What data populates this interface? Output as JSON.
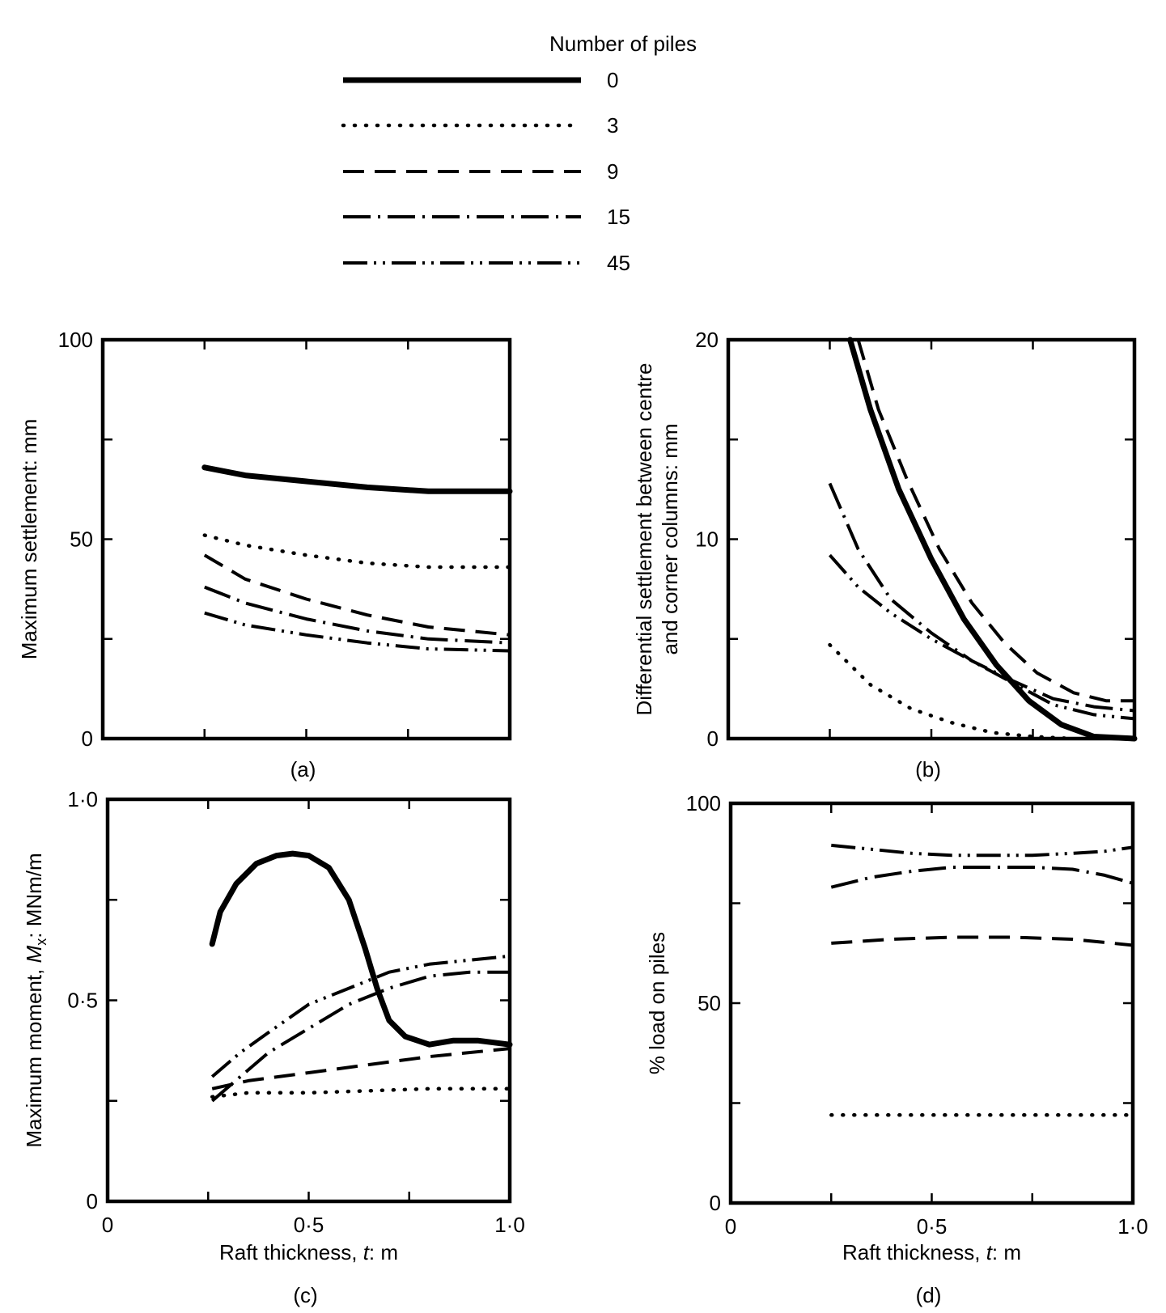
{
  "legend": {
    "title": "Number of piles",
    "entries": [
      {
        "label": "0",
        "style": "solid"
      },
      {
        "label": "3",
        "style": "dotted"
      },
      {
        "label": "9",
        "style": "dashed"
      },
      {
        "label": "15",
        "style": "dashdot"
      },
      {
        "label": "45",
        "style": "dashdotdot"
      }
    ]
  },
  "colors": {
    "line": "#000000",
    "background": "#ffffff"
  },
  "chart_data": [
    {
      "id": "a",
      "type": "line",
      "caption": "(a)",
      "ylabel": "Maximum settlement: mm",
      "ylabel_line2": "",
      "xlabel": "",
      "xlabel_suffix": "",
      "xlim": [
        0,
        1.0
      ],
      "ylim": [
        0,
        100
      ],
      "yticks": [
        0,
        25,
        50,
        75,
        100
      ],
      "ytick_labels": [
        "0",
        "",
        "50",
        "",
        "100"
      ],
      "xticks": [
        0,
        0.25,
        0.5,
        0.75,
        1.0
      ],
      "xtick_labels": [
        "",
        "",
        "",
        "",
        ""
      ],
      "series": [
        {
          "name": "0",
          "style": "solid",
          "x": [
            0.25,
            0.35,
            0.5,
            0.65,
            0.8,
            1.0
          ],
          "y": [
            68,
            66,
            64.5,
            63,
            62,
            62
          ]
        },
        {
          "name": "3",
          "style": "dotted",
          "x": [
            0.25,
            0.35,
            0.5,
            0.65,
            0.8,
            1.0
          ],
          "y": [
            51,
            48.5,
            46,
            44,
            43,
            43
          ]
        },
        {
          "name": "9",
          "style": "dashed",
          "x": [
            0.25,
            0.35,
            0.5,
            0.65,
            0.8,
            1.0
          ],
          "y": [
            46,
            40,
            35,
            31,
            28,
            26
          ]
        },
        {
          "name": "15",
          "style": "dashdot",
          "x": [
            0.25,
            0.35,
            0.5,
            0.65,
            0.8,
            1.0
          ],
          "y": [
            38,
            34,
            30,
            27,
            25,
            24
          ]
        },
        {
          "name": "45",
          "style": "dashdotdot",
          "x": [
            0.25,
            0.35,
            0.5,
            0.65,
            0.8,
            1.0
          ],
          "y": [
            31.5,
            28.5,
            26,
            24,
            22.5,
            22
          ]
        }
      ]
    },
    {
      "id": "b",
      "type": "line",
      "caption": "(b)",
      "ylabel": "Differential  settlement between centre",
      "ylabel_line2": "and corner columns: mm",
      "xlabel": "",
      "xlabel_suffix": "",
      "xlim": [
        0,
        1.0
      ],
      "ylim": [
        0,
        20
      ],
      "yticks": [
        0,
        5,
        10,
        15,
        20
      ],
      "ytick_labels": [
        "0",
        "",
        "10",
        "",
        "20"
      ],
      "xticks": [
        0,
        0.25,
        0.5,
        0.75,
        1.0
      ],
      "xtick_labels": [
        "",
        "",
        "",
        "",
        ""
      ],
      "series": [
        {
          "name": "0",
          "style": "solid",
          "x": [
            0.3,
            0.35,
            0.42,
            0.5,
            0.58,
            0.66,
            0.74,
            0.82,
            0.9,
            1.0
          ],
          "y": [
            20,
            16.5,
            12.5,
            9,
            6,
            3.7,
            1.9,
            0.7,
            0.1,
            0
          ]
        },
        {
          "name": "3",
          "style": "dotted",
          "x": [
            0.25,
            0.35,
            0.45,
            0.55,
            0.65,
            0.75,
            0.85
          ],
          "y": [
            4.7,
            2.7,
            1.5,
            0.8,
            0.3,
            0.1,
            0
          ]
        },
        {
          "name": "9",
          "style": "dashed",
          "x": [
            0.32,
            0.37,
            0.44,
            0.52,
            0.6,
            0.68,
            0.76,
            0.85,
            0.93,
            1.0
          ],
          "y": [
            20,
            16.5,
            13,
            9.5,
            6.8,
            4.8,
            3.3,
            2.3,
            1.9,
            1.9
          ]
        },
        {
          "name": "15",
          "style": "dashdot",
          "x": [
            0.25,
            0.32,
            0.4,
            0.5,
            0.6,
            0.7,
            0.8,
            0.9,
            1.0
          ],
          "y": [
            12.8,
            9.5,
            7,
            5.3,
            3.9,
            2.9,
            2.0,
            1.6,
            1.4
          ]
        },
        {
          "name": "45",
          "style": "dashdotdot",
          "x": [
            0.25,
            0.32,
            0.4,
            0.5,
            0.6,
            0.7,
            0.8,
            0.9,
            1.0
          ],
          "y": [
            9.2,
            7.6,
            6.3,
            5.0,
            3.9,
            2.8,
            1.7,
            1.2,
            1.0
          ]
        }
      ]
    },
    {
      "id": "c",
      "type": "line",
      "caption": "(c)",
      "ylabel": "Maximum moment, ",
      "ylabel_italic": "M",
      "ylabel_sub": "x",
      "ylabel_tail": ": MNm/m",
      "ylabel_line2": "",
      "xlabel": "Raft thickness, ",
      "xlabel_italic": "t",
      "xlabel_suffix": ": m",
      "xlim": [
        0,
        1.0
      ],
      "ylim": [
        0,
        1.0
      ],
      "yticks": [
        0,
        0.25,
        0.5,
        0.75,
        1.0
      ],
      "ytick_labels": [
        "0",
        "",
        "0·5",
        "",
        "1·0"
      ],
      "xticks": [
        0,
        0.25,
        0.5,
        0.75,
        1.0
      ],
      "xtick_labels": [
        "0",
        "",
        "0·5",
        "",
        "1·0"
      ],
      "series": [
        {
          "name": "0",
          "style": "solid",
          "x": [
            0.26,
            0.28,
            0.32,
            0.37,
            0.42,
            0.46,
            0.5,
            0.55,
            0.6,
            0.64,
            0.67,
            0.7,
            0.74,
            0.8,
            0.86,
            0.92,
            1.0
          ],
          "y": [
            0.64,
            0.72,
            0.79,
            0.84,
            0.86,
            0.865,
            0.86,
            0.83,
            0.75,
            0.63,
            0.53,
            0.45,
            0.41,
            0.39,
            0.4,
            0.4,
            0.39
          ]
        },
        {
          "name": "3",
          "style": "dotted",
          "x": [
            0.26,
            0.35,
            0.5,
            0.65,
            0.8,
            1.0
          ],
          "y": [
            0.26,
            0.27,
            0.27,
            0.275,
            0.28,
            0.28
          ]
        },
        {
          "name": "9",
          "style": "dashed",
          "x": [
            0.26,
            0.35,
            0.5,
            0.65,
            0.8,
            1.0
          ],
          "y": [
            0.28,
            0.3,
            0.32,
            0.34,
            0.36,
            0.38
          ]
        },
        {
          "name": "15",
          "style": "dashdot",
          "x": [
            0.26,
            0.33,
            0.4,
            0.5,
            0.6,
            0.7,
            0.8,
            0.9,
            1.0
          ],
          "y": [
            0.25,
            0.31,
            0.37,
            0.43,
            0.49,
            0.53,
            0.56,
            0.57,
            0.57
          ]
        },
        {
          "name": "45",
          "style": "dashdotdot",
          "x": [
            0.26,
            0.33,
            0.4,
            0.5,
            0.6,
            0.7,
            0.8,
            0.9,
            1.0
          ],
          "y": [
            0.31,
            0.37,
            0.42,
            0.49,
            0.53,
            0.57,
            0.59,
            0.6,
            0.61
          ]
        }
      ]
    },
    {
      "id": "d",
      "type": "line",
      "caption": "(d)",
      "ylabel": "% load on piles",
      "ylabel_line2": "",
      "xlabel": "Raft thickness, ",
      "xlabel_italic": "t",
      "xlabel_suffix": ": m",
      "xlim": [
        0,
        1.0
      ],
      "ylim": [
        0,
        100
      ],
      "yticks": [
        0,
        25,
        50,
        75,
        100
      ],
      "ytick_labels": [
        "0",
        "",
        "50",
        "",
        "100"
      ],
      "xticks": [
        0,
        0.25,
        0.5,
        0.75,
        1.0
      ],
      "xtick_labels": [
        "0",
        "",
        "0·5",
        "",
        "1·0"
      ],
      "series": [
        {
          "name": "3",
          "style": "dotted",
          "x": [
            0.25,
            0.5,
            0.75,
            1.0
          ],
          "y": [
            22,
            22,
            22,
            22
          ]
        },
        {
          "name": "9",
          "style": "dashed",
          "x": [
            0.25,
            0.4,
            0.55,
            0.7,
            0.85,
            1.0
          ],
          "y": [
            65,
            66,
            66.5,
            66.5,
            66,
            64.5
          ]
        },
        {
          "name": "15",
          "style": "dashdot",
          "x": [
            0.25,
            0.35,
            0.45,
            0.55,
            0.65,
            0.75,
            0.85,
            0.93,
            1.0
          ],
          "y": [
            79,
            81.5,
            83,
            84,
            84,
            84,
            83.5,
            82,
            80
          ]
        },
        {
          "name": "45",
          "style": "dashdotdot",
          "x": [
            0.25,
            0.35,
            0.45,
            0.55,
            0.65,
            0.75,
            0.85,
            0.93,
            1.0
          ],
          "y": [
            89.5,
            88.5,
            87.5,
            87,
            87,
            87,
            87.5,
            88,
            89
          ]
        }
      ]
    }
  ]
}
